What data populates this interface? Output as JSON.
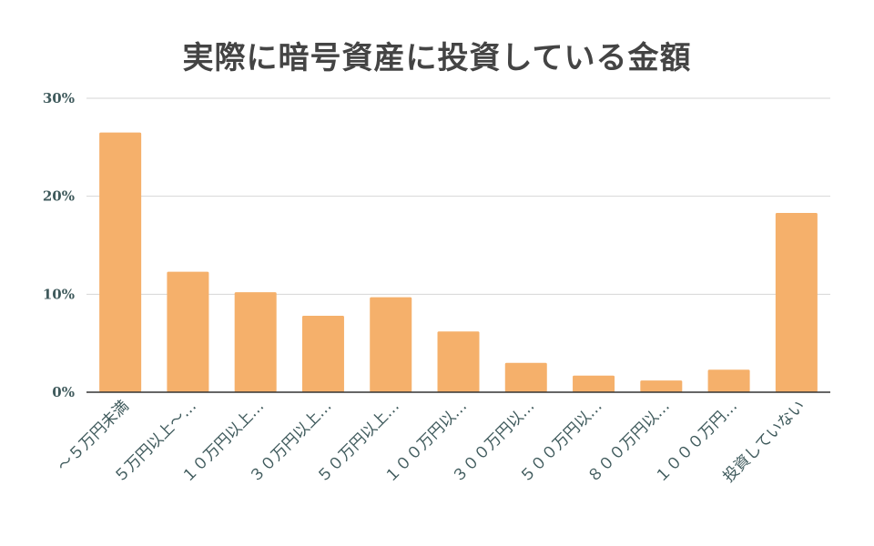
{
  "chart_data": {
    "type": "bar",
    "title": "実際に暗号資産に投資している金額",
    "xlabel": "",
    "ylabel": "",
    "categories": [
      "～５万円未満",
      "５万円以上～…",
      "１０万円以上…",
      "３０万円以上…",
      "５０万円以上…",
      "１００万円以…",
      "３００万円以…",
      "５００万円以…",
      "８００万円以…",
      "１０００万円…",
      "投資していない"
    ],
    "values": [
      26.5,
      12.3,
      10.2,
      7.8,
      9.7,
      6.2,
      3.0,
      1.7,
      1.2,
      2.3,
      18.3
    ],
    "ylim": [
      0,
      30
    ],
    "yticks": [
      0,
      10,
      20,
      30
    ],
    "ytick_labels": [
      "0%",
      "10%",
      "20%",
      "30%"
    ],
    "grid": true,
    "legend": "none",
    "colors": {
      "bar": "#f5b06b",
      "title": "#444444",
      "tick": "#3f5a5c",
      "grid": "#d6d6d6",
      "axis": "#333333"
    }
  }
}
